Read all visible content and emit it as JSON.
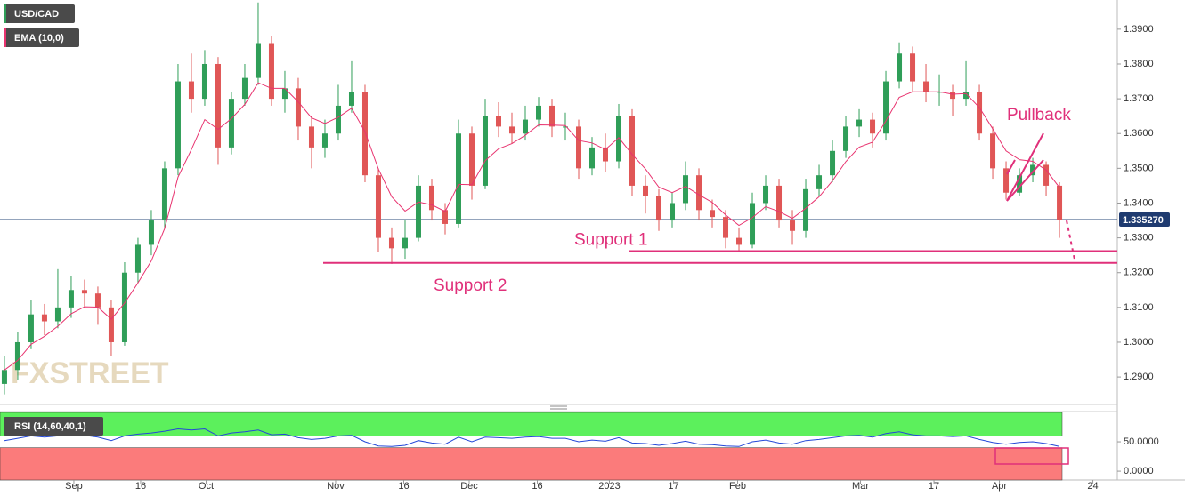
{
  "chart_data": [
    {
      "type": "candlestick",
      "title": "USD/CAD",
      "candles": {
        "open": [
          1.288,
          1.292,
          1.3,
          1.308,
          1.306,
          1.31,
          1.315,
          1.314,
          1.31,
          1.3,
          1.32,
          1.328,
          1.335,
          1.35,
          1.375,
          1.37,
          1.38,
          1.356,
          1.37,
          1.376,
          1.386,
          1.37,
          1.373,
          1.362,
          1.356,
          1.36,
          1.368,
          1.372,
          1.348,
          1.33,
          1.327,
          1.33,
          1.345,
          1.338,
          1.334,
          1.36,
          1.345,
          1.365,
          1.362,
          1.36,
          1.364,
          1.368,
          1.362,
          1.362,
          1.35,
          1.356,
          1.352,
          1.365,
          1.345,
          1.342,
          1.335,
          1.34,
          1.348,
          1.338,
          1.336,
          1.33,
          1.328,
          1.34,
          1.345,
          1.335,
          1.332,
          1.344,
          1.348,
          1.355,
          1.362,
          1.364,
          1.36,
          1.375,
          1.383,
          1.375,
          1.372,
          1.372,
          1.37,
          1.372,
          1.36,
          1.35,
          1.343,
          1.348,
          1.351,
          1.345
        ],
        "high": [
          1.296,
          1.303,
          1.312,
          1.311,
          1.321,
          1.319,
          1.318,
          1.316,
          1.312,
          1.323,
          1.33,
          1.338,
          1.352,
          1.38,
          1.383,
          1.384,
          1.382,
          1.372,
          1.38,
          1.3977,
          1.388,
          1.378,
          1.376,
          1.365,
          1.364,
          1.374,
          1.3808,
          1.374,
          1.35,
          1.333,
          1.335,
          1.348,
          1.347,
          1.34,
          1.364,
          1.362,
          1.37,
          1.369,
          1.366,
          1.368,
          1.3705,
          1.37,
          1.366,
          1.364,
          1.359,
          1.36,
          1.3685,
          1.367,
          1.348,
          1.344,
          1.343,
          1.352,
          1.35,
          1.341,
          1.338,
          1.333,
          1.343,
          1.348,
          1.347,
          1.338,
          1.347,
          1.351,
          1.358,
          1.365,
          1.367,
          1.366,
          1.378,
          1.3862,
          1.385,
          1.38,
          1.377,
          1.374,
          1.3808,
          1.374,
          1.362,
          1.352,
          1.35,
          1.353,
          1.352,
          1.346
        ],
        "low": [
          1.285,
          1.289,
          1.298,
          1.302,
          1.304,
          1.307,
          1.31,
          1.305,
          1.296,
          1.299,
          1.317,
          1.325,
          1.333,
          1.348,
          1.366,
          1.368,
          1.351,
          1.354,
          1.368,
          1.374,
          1.368,
          1.366,
          1.358,
          1.35,
          1.353,
          1.358,
          1.366,
          1.346,
          1.326,
          1.3225,
          1.324,
          1.329,
          1.335,
          1.331,
          1.333,
          1.341,
          1.344,
          1.359,
          1.357,
          1.358,
          1.362,
          1.359,
          1.358,
          1.347,
          1.348,
          1.349,
          1.35,
          1.342,
          1.337,
          1.332,
          1.333,
          1.338,
          1.335,
          1.333,
          1.327,
          1.3262,
          1.327,
          1.338,
          1.333,
          1.328,
          1.33,
          1.342,
          1.346,
          1.353,
          1.359,
          1.356,
          1.358,
          1.373,
          1.372,
          1.369,
          1.368,
          1.365,
          1.368,
          1.358,
          1.347,
          1.341,
          1.342,
          1.346,
          1.342,
          1.33
        ],
        "close": [
          1.292,
          1.3,
          1.308,
          1.306,
          1.31,
          1.315,
          1.314,
          1.31,
          1.3,
          1.32,
          1.328,
          1.335,
          1.35,
          1.375,
          1.37,
          1.38,
          1.356,
          1.37,
          1.376,
          1.386,
          1.37,
          1.373,
          1.362,
          1.356,
          1.36,
          1.368,
          1.372,
          1.348,
          1.33,
          1.327,
          1.33,
          1.345,
          1.338,
          1.334,
          1.36,
          1.345,
          1.365,
          1.362,
          1.36,
          1.364,
          1.368,
          1.362,
          1.362,
          1.35,
          1.356,
          1.352,
          1.365,
          1.345,
          1.342,
          1.335,
          1.34,
          1.348,
          1.338,
          1.336,
          1.33,
          1.328,
          1.34,
          1.345,
          1.335,
          1.332,
          1.344,
          1.348,
          1.355,
          1.362,
          1.364,
          1.36,
          1.375,
          1.383,
          1.375,
          1.372,
          1.372,
          1.37,
          1.372,
          1.36,
          1.35,
          1.343,
          1.348,
          1.351,
          1.345,
          1.3352
        ]
      },
      "up_color": "#2f9e58",
      "down_color": "#e05656",
      "ema": {
        "name": "EMA (10,0)",
        "color": "#e8336f",
        "values": [
          1.292,
          1.2948,
          1.2994,
          1.3017,
          1.3046,
          1.3082,
          1.3102,
          1.3101,
          1.3066,
          1.3113,
          1.3171,
          1.3234,
          1.3327,
          1.3475,
          1.3554,
          1.364,
          1.3612,
          1.3643,
          1.3684,
          1.3746,
          1.373,
          1.373,
          1.3691,
          1.3645,
          1.3629,
          1.3647,
          1.3673,
          1.3605,
          1.3498,
          1.3418,
          1.3377,
          1.3403,
          1.3395,
          1.3376,
          1.3454,
          1.3453,
          1.3522,
          1.3556,
          1.3571,
          1.3595,
          1.3625,
          1.3624,
          1.3623,
          1.358,
          1.3573,
          1.3554,
          1.3588,
          1.354,
          1.3498,
          1.3446,
          1.343,
          1.3448,
          1.3424,
          1.3402,
          1.3366,
          1.3336,
          1.3358,
          1.339,
          1.3376,
          1.3356,
          1.3385,
          1.3418,
          1.3464,
          1.3519,
          1.3561,
          1.3575,
          1.3636,
          1.3704,
          1.372,
          1.372,
          1.372,
          1.3713,
          1.3715,
          1.3675,
          1.3614,
          1.355,
          1.3525,
          1.352,
          1.3495,
          1.3445
        ]
      },
      "xlim": [
        -0.33,
        83.33
      ],
      "xticks": [
        {
          "value": 5.2,
          "label": "Sep"
        },
        {
          "value": 10.2,
          "label": "16"
        },
        {
          "value": 15.1,
          "label": "Oct"
        },
        {
          "value": 24.8,
          "label": "Nov"
        },
        {
          "value": 29.9,
          "label": "16"
        },
        {
          "value": 34.8,
          "label": "Dec"
        },
        {
          "value": 39.9,
          "label": "16"
        },
        {
          "value": 45.3,
          "label": "2023"
        },
        {
          "value": 50.1,
          "label": "17"
        },
        {
          "value": 54.9,
          "label": "Feb"
        },
        {
          "value": 64.1,
          "label": "Mar"
        },
        {
          "value": 69.6,
          "label": "17"
        },
        {
          "value": 74.5,
          "label": "Apr"
        },
        {
          "value": 81.5,
          "label": "24"
        }
      ],
      "ylim": [
        1.2821,
        1.3984
      ],
      "yticks": [
        {
          "value": 1.29,
          "label": "1.2900"
        },
        {
          "value": 1.3,
          "label": "1.3000"
        },
        {
          "value": 1.31,
          "label": "1.3100"
        },
        {
          "value": 1.32,
          "label": "1.3200"
        },
        {
          "value": 1.33,
          "label": "1.3300"
        },
        {
          "value": 1.34,
          "label": "1.3400"
        },
        {
          "value": 1.35,
          "label": "1.3500"
        },
        {
          "value": 1.36,
          "label": "1.3600"
        },
        {
          "value": 1.37,
          "label": "1.3700"
        },
        {
          "value": 1.38,
          "label": "1.3800"
        },
        {
          "value": 1.39,
          "label": "1.3900"
        }
      ],
      "last_price": {
        "value": 1.33527,
        "label": "1.335270"
      },
      "annotations": [
        {
          "text": "Pullback"
        },
        {
          "text": "Support 1",
          "value": 1.3262
        },
        {
          "text": "Support 2",
          "value": 1.3228
        }
      ],
      "annotation_color": "#e0307a",
      "watermark": "FXSTREET"
    },
    {
      "type": "line",
      "title": "RSI (14,60,40,1)",
      "series": [
        {
          "color": "#2448d8",
          "values": [
            52,
            56,
            60,
            58,
            60,
            62,
            61,
            58,
            52,
            60,
            63,
            65,
            68,
            72,
            70,
            72,
            60,
            65,
            67,
            70,
            62,
            63,
            57,
            54,
            56,
            60,
            61,
            50,
            43,
            42,
            44,
            52,
            48,
            46,
            58,
            50,
            58,
            57,
            56,
            58,
            59,
            56,
            56,
            50,
            53,
            51,
            57,
            48,
            47,
            44,
            47,
            51,
            46,
            45,
            43,
            42,
            50,
            53,
            48,
            46,
            52,
            54,
            57,
            60,
            61,
            58,
            64,
            67,
            62,
            60,
            60,
            59,
            60,
            54,
            49,
            46,
            49,
            50,
            47,
            42
          ]
        }
      ],
      "upper": 60,
      "lower": 40,
      "upper_color": "#5cf05c",
      "lower_color": "#fb7b7b",
      "xlim": [
        -0.33,
        83.33
      ],
      "ylim": [
        -15,
        101.5
      ],
      "yticks": [
        {
          "value": 50,
          "label": "50.0000"
        },
        {
          "value": 0,
          "label": "0.0000"
        }
      ]
    }
  ]
}
